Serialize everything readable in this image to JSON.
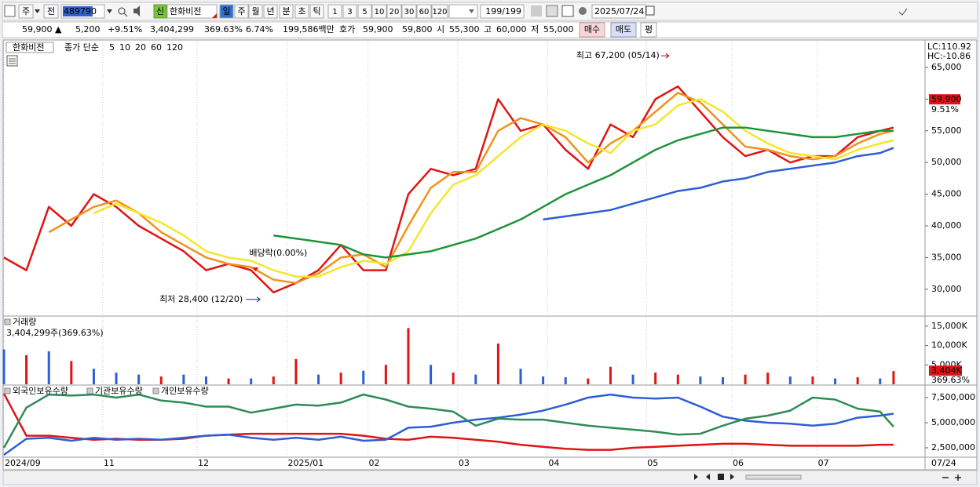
{
  "toolbar": {
    "period": "주",
    "prev": "전",
    "code": "489790",
    "badge": "신",
    "name": "한화비전",
    "intervals": [
      "일",
      "주",
      "월",
      "년",
      "분",
      "초",
      "틱"
    ],
    "minutes": [
      "1",
      "3",
      "5",
      "10",
      "20",
      "30",
      "60",
      "120"
    ],
    "count": "199/199",
    "date": "2025/07/24"
  },
  "quote": {
    "price": "59,900",
    "arrow": "▲",
    "change": "5,200",
    "change_pct": "+9.51%",
    "volume": "3,404,299",
    "volume_pct": "369.63%",
    "turnover": "6.74%",
    "amount": "199,586백만",
    "ask_label": "호가",
    "ask": "59,900",
    "bid": "59,800",
    "open_label": "시",
    "open": "55,300",
    "high_label": "고",
    "high": "60,000",
    "low_label": "저",
    "low": "55,000",
    "buy": "매수",
    "sell": "매도",
    "avg": "평"
  },
  "chart_data": [
    {
      "type": "line",
      "title": "한화비전",
      "legend_title": "종가 단순",
      "corner_labels": [
        "LC:110.92",
        "HC:-10.86"
      ],
      "x": [
        0,
        5,
        10,
        15,
        20,
        25,
        30,
        35,
        40,
        45,
        50,
        55,
        60,
        65,
        70,
        75,
        80,
        85,
        90,
        95,
        100,
        105,
        110,
        115,
        120,
        125,
        130,
        135,
        140,
        145,
        150,
        155,
        160,
        165,
        170,
        175,
        180,
        185,
        190,
        195,
        198
      ],
      "xlim": [
        0,
        205
      ],
      "ylim": [
        25900,
        69200
      ],
      "yticks": [
        {
          "value": 30000,
          "label": "30,000"
        },
        {
          "value": 35000,
          "label": "35,000"
        },
        {
          "value": 40000,
          "label": "40,000"
        },
        {
          "value": 45000,
          "label": "45,000"
        },
        {
          "value": 50000,
          "label": "50,000"
        },
        {
          "value": 55000,
          "label": "55,000"
        },
        {
          "value": 60000,
          "label": "60,000"
        },
        {
          "value": 65000,
          "label": "65,000"
        }
      ],
      "series": [
        {
          "name": "5",
          "color": "#e01414",
          "values": [
            35000,
            33000,
            43000,
            40000,
            45000,
            43000,
            40000,
            38000,
            36000,
            33000,
            34000,
            33000,
            29500,
            31000,
            33000,
            37000,
            33000,
            33000,
            45000,
            49000,
            48000,
            49000,
            60000,
            55000,
            56000,
            52000,
            49000,
            56000,
            54000,
            60000,
            62000,
            58000,
            54000,
            51000,
            52000,
            50000,
            51000,
            51000,
            54000,
            55000,
            55500
          ]
        },
        {
          "name": "10",
          "color": "#f0921e",
          "values": [
            null,
            null,
            39000,
            41000,
            43000,
            44000,
            42000,
            39000,
            37000,
            35000,
            34000,
            33500,
            31500,
            31000,
            32500,
            35000,
            35500,
            33500,
            40000,
            46000,
            48500,
            48500,
            55000,
            57000,
            56000,
            54000,
            50000,
            53000,
            55000,
            58000,
            61000,
            59500,
            56000,
            52500,
            52000,
            51000,
            50500,
            51000,
            53000,
            54500,
            55000
          ]
        },
        {
          "name": "20",
          "color": "#f4e62c",
          "values": [
            null,
            null,
            null,
            null,
            42000,
            43500,
            42000,
            40500,
            38500,
            36000,
            35000,
            34500,
            33000,
            32000,
            32000,
            33500,
            34500,
            34000,
            36000,
            42000,
            46500,
            48000,
            51000,
            54000,
            56000,
            55000,
            53000,
            51500,
            55000,
            56000,
            59000,
            60000,
            58000,
            55000,
            53000,
            51500,
            51000,
            50500,
            52000,
            53000,
            53500
          ]
        },
        {
          "name": "60",
          "color": "#1e9438",
          "values": [
            null,
            null,
            null,
            null,
            null,
            null,
            null,
            null,
            null,
            null,
            null,
            null,
            38500,
            38000,
            37500,
            37000,
            35500,
            35000,
            35500,
            36000,
            37000,
            38000,
            39500,
            41000,
            43000,
            45000,
            46500,
            48000,
            50000,
            52000,
            53500,
            54500,
            55500,
            55500,
            55000,
            54500,
            54000,
            54000,
            54500,
            55000,
            55000
          ]
        },
        {
          "name": "120",
          "color": "#2d5ed6",
          "values": [
            null,
            null,
            null,
            null,
            null,
            null,
            null,
            null,
            null,
            null,
            null,
            null,
            null,
            null,
            null,
            null,
            null,
            null,
            null,
            null,
            null,
            null,
            null,
            null,
            41000,
            41500,
            42000,
            42500,
            43500,
            44500,
            45500,
            46000,
            47000,
            47500,
            48500,
            49000,
            49500,
            50000,
            51000,
            51500,
            52300
          ]
        }
      ],
      "high": {
        "label": "최고 67,200 (05/14)",
        "value": 67200,
        "x": 148
      },
      "low": {
        "label": "최저 28,400 (12/20)",
        "value": 28400,
        "x": 57
      },
      "event": {
        "label": "배당락(0.00%)",
        "x": 56
      },
      "last": {
        "value": 59900,
        "label": "59,900",
        "change_label": "9.51%"
      }
    },
    {
      "type": "bar",
      "title": "거래량",
      "subtitle": "3,404,299주(369.63%)",
      "x": [
        0,
        5,
        10,
        15,
        20,
        25,
        30,
        35,
        40,
        45,
        50,
        55,
        60,
        65,
        70,
        75,
        80,
        85,
        90,
        95,
        100,
        105,
        110,
        115,
        120,
        125,
        130,
        135,
        140,
        145,
        150,
        155,
        160,
        165,
        170,
        175,
        180,
        185,
        190,
        195,
        198
      ],
      "xlim": [
        0,
        205
      ],
      "ylim": [
        0,
        17200
      ],
      "yticks": [
        {
          "value": 5000,
          "label": "5,000K"
        },
        {
          "value": 10000,
          "label": "10,000K"
        },
        {
          "value": 15000,
          "label": "15,000K"
        }
      ],
      "values": [
        9000,
        7500,
        8500,
        6000,
        4000,
        3000,
        2500,
        2000,
        2500,
        2000,
        1500,
        1500,
        2000,
        6500,
        2500,
        3000,
        3500,
        5000,
        14500,
        5000,
        3000,
        2500,
        10500,
        4000,
        2000,
        1800,
        1500,
        4500,
        2500,
        3000,
        2500,
        2000,
        1800,
        2500,
        3000,
        2000,
        2000,
        1500,
        1800,
        1500,
        3404
      ],
      "colors": [
        "#2d5ed6",
        "#e01414",
        "#2d5ed6",
        "#e01414",
        "#2d5ed6",
        "#2d5ed6",
        "#2d5ed6",
        "#e01414",
        "#2d5ed6",
        "#2d5ed6",
        "#e01414",
        "#2d5ed6",
        "#e01414",
        "#e01414",
        "#2d5ed6",
        "#e01414",
        "#2d5ed6",
        "#e01414",
        "#e01414",
        "#2d5ed6",
        "#e01414",
        "#2d5ed6",
        "#e01414",
        "#2d5ed6",
        "#2d5ed6",
        "#2d5ed6",
        "#e01414",
        "#e01414",
        "#2d5ed6",
        "#e01414",
        "#e01414",
        "#2d5ed6",
        "#2d5ed6",
        "#e01414",
        "#e01414",
        "#2d5ed6",
        "#e01414",
        "#2d5ed6",
        "#e01414",
        "#2d5ed6",
        "#e01414"
      ],
      "last": {
        "value": 3404,
        "label": "3,404K",
        "change_label": "369.63%"
      }
    },
    {
      "type": "line",
      "x": [
        0,
        5,
        10,
        15,
        20,
        25,
        30,
        35,
        40,
        45,
        50,
        55,
        60,
        65,
        70,
        75,
        80,
        85,
        90,
        95,
        100,
        105,
        110,
        115,
        120,
        125,
        130,
        135,
        140,
        145,
        150,
        155,
        160,
        165,
        170,
        175,
        180,
        185,
        190,
        195,
        198
      ],
      "xlim": [
        0,
        205
      ],
      "ylim": [
        1640000,
        8670000
      ],
      "yticks": [
        {
          "value": 2500000,
          "label": "2,500,000"
        },
        {
          "value": 5000000,
          "label": "5,000,000"
        },
        {
          "value": 7500000,
          "label": "7,500,000"
        }
      ],
      "xticks": [
        {
          "value": 0,
          "label": "2024/09"
        },
        {
          "value": 22,
          "label": "11"
        },
        {
          "value": 43,
          "label": "12"
        },
        {
          "value": 63,
          "label": "2025/01"
        },
        {
          "value": 81,
          "label": "02"
        },
        {
          "value": 101,
          "label": "03"
        },
        {
          "value": 121,
          "label": "04"
        },
        {
          "value": 143,
          "label": "05"
        },
        {
          "value": 162,
          "label": "06"
        },
        {
          "value": 181,
          "label": "07"
        }
      ],
      "end_label": "07/24",
      "series": [
        {
          "name": "외국인보유수량",
          "color": "#e01414",
          "values": [
            7900000,
            3700000,
            3700000,
            3500000,
            3300000,
            3400000,
            3300000,
            3300000,
            3400000,
            3700000,
            3800000,
            3900000,
            3900000,
            3900000,
            3900000,
            3900000,
            3700000,
            3400000,
            3300000,
            3600000,
            3500000,
            3300000,
            3100000,
            2800000,
            2600000,
            2400000,
            2300000,
            2300000,
            2500000,
            2600000,
            2700000,
            2800000,
            2900000,
            2900000,
            2800000,
            2700000,
            2700000,
            2700000,
            2700000,
            2800000,
            2800000
          ]
        },
        {
          "name": "기관보유수량",
          "color": "#2d5ed6",
          "values": [
            1800000,
            3400000,
            3500000,
            3200000,
            3500000,
            3300000,
            3400000,
            3300000,
            3500000,
            3700000,
            3800000,
            3500000,
            3300000,
            3500000,
            3300000,
            3600000,
            3200000,
            3300000,
            4500000,
            4600000,
            5000000,
            5300000,
            5500000,
            5800000,
            6200000,
            6800000,
            7500000,
            7800000,
            7500000,
            7400000,
            7500000,
            6600000,
            5600000,
            5200000,
            5000000,
            4900000,
            4700000,
            4900000,
            5500000,
            5700000,
            5900000
          ]
        },
        {
          "name": "개인보유수량",
          "color": "#2e8b57",
          "values": [
            2500000,
            6500000,
            7800000,
            7700000,
            7800000,
            7500000,
            7800000,
            7200000,
            7000000,
            6600000,
            6600000,
            6000000,
            6400000,
            6800000,
            6700000,
            7000000,
            7800000,
            7300000,
            6600000,
            6400000,
            6100000,
            4700000,
            5400000,
            5300000,
            5300000,
            5000000,
            4700000,
            4500000,
            4300000,
            4100000,
            3800000,
            3900000,
            4700000,
            5400000,
            5700000,
            6200000,
            7500000,
            7300000,
            6400000,
            6100000,
            4600000
          ]
        }
      ]
    }
  ]
}
